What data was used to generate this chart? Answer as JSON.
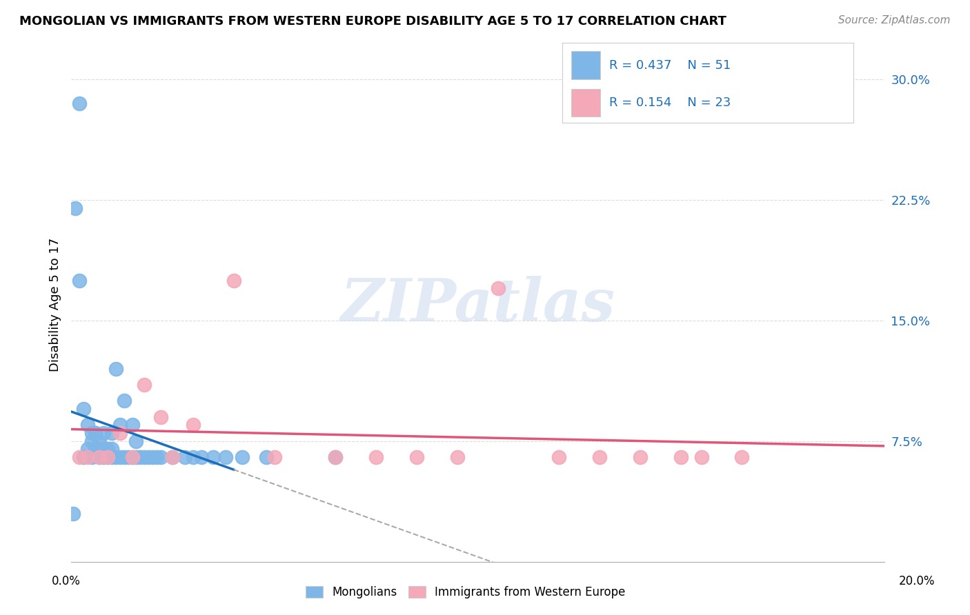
{
  "title": "MONGOLIAN VS IMMIGRANTS FROM WESTERN EUROPE DISABILITY AGE 5 TO 17 CORRELATION CHART",
  "source": "Source: ZipAtlas.com",
  "ylabel": "Disability Age 5 to 17",
  "xlim": [
    0.0,
    0.2
  ],
  "ylim": [
    0.0,
    0.32
  ],
  "legend1_R": "0.437",
  "legend1_N": "51",
  "legend2_R": "0.154",
  "legend2_N": "23",
  "blue_color": "#7EB6E8",
  "pink_color": "#F4A8B8",
  "blue_line_color": "#1E6FBA",
  "pink_line_color": "#E05578",
  "legend_text_color": "#1E6FBA",
  "watermark_zip": "ZIP",
  "watermark_atlas": "atlas",
  "blue_x": [
    0.0005,
    0.001,
    0.002,
    0.002,
    0.003,
    0.003,
    0.004,
    0.004,
    0.005,
    0.005,
    0.005,
    0.006,
    0.006,
    0.006,
    0.007,
    0.007,
    0.007,
    0.008,
    0.008,
    0.008,
    0.009,
    0.009,
    0.01,
    0.01,
    0.01,
    0.011,
    0.011,
    0.012,
    0.012,
    0.013,
    0.013,
    0.014,
    0.015,
    0.015,
    0.016,
    0.016,
    0.017,
    0.018,
    0.019,
    0.02,
    0.021,
    0.022,
    0.025,
    0.028,
    0.03,
    0.032,
    0.035,
    0.038,
    0.042,
    0.048,
    0.065
  ],
  "blue_y": [
    0.03,
    0.22,
    0.175,
    0.285,
    0.065,
    0.095,
    0.085,
    0.07,
    0.075,
    0.08,
    0.065,
    0.07,
    0.08,
    0.08,
    0.065,
    0.07,
    0.075,
    0.065,
    0.07,
    0.08,
    0.065,
    0.07,
    0.065,
    0.07,
    0.08,
    0.065,
    0.12,
    0.065,
    0.085,
    0.065,
    0.1,
    0.065,
    0.065,
    0.085,
    0.065,
    0.075,
    0.065,
    0.065,
    0.065,
    0.065,
    0.065,
    0.065,
    0.065,
    0.065,
    0.065,
    0.065,
    0.065,
    0.065,
    0.065,
    0.065,
    0.065
  ],
  "pink_x": [
    0.002,
    0.004,
    0.007,
    0.009,
    0.012,
    0.015,
    0.018,
    0.022,
    0.025,
    0.03,
    0.04,
    0.05,
    0.065,
    0.075,
    0.085,
    0.095,
    0.105,
    0.12,
    0.13,
    0.14,
    0.15,
    0.155,
    0.165
  ],
  "pink_y": [
    0.065,
    0.065,
    0.065,
    0.065,
    0.08,
    0.065,
    0.11,
    0.09,
    0.065,
    0.085,
    0.175,
    0.065,
    0.065,
    0.065,
    0.065,
    0.065,
    0.17,
    0.065,
    0.065,
    0.065,
    0.065,
    0.065,
    0.065
  ]
}
